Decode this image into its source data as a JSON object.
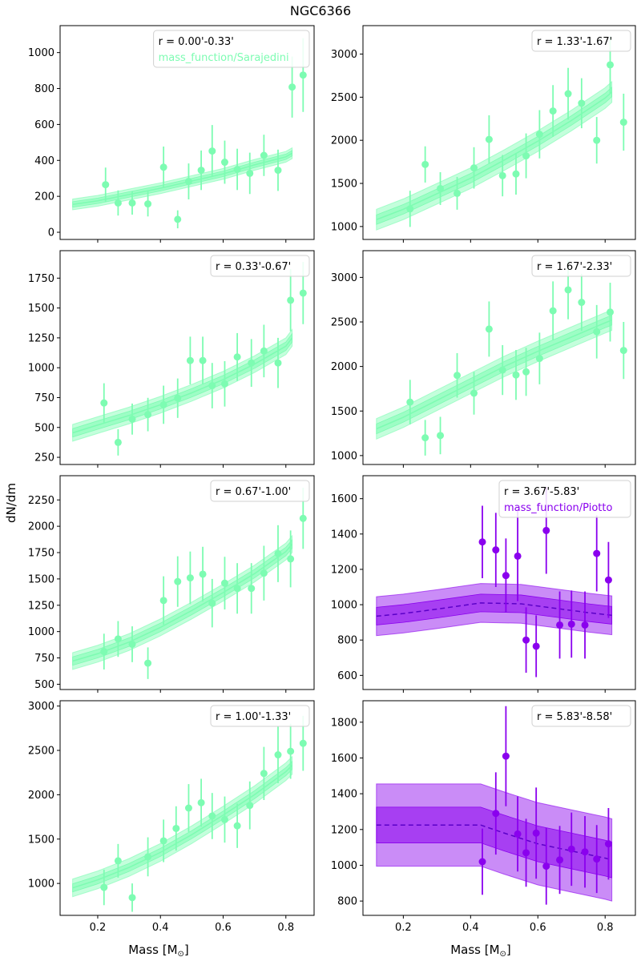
{
  "figure": {
    "title": "NGC6366",
    "ylabel": "dN/dm",
    "xlabel": "Mass [M",
    "xlabel_sub": "⊙",
    "xlabel_close": "]"
  },
  "colors": {
    "green": "#7dfcb2",
    "purple": "#8a00ee"
  },
  "chart_data": [
    {
      "type": "scatter",
      "radial_bin": "r = 0.00'-0.33'",
      "legend_series": "mass_function/Sarajedini",
      "xlim": [
        0.08,
        0.89
      ],
      "ylim": [
        -40,
        1150
      ],
      "yticks": [
        0,
        200,
        400,
        600,
        800,
        1000
      ],
      "xticks": [
        0.2,
        0.4,
        0.6,
        0.8
      ],
      "model": {
        "x": [
          0.12,
          0.2,
          0.3,
          0.4,
          0.5,
          0.6,
          0.7,
          0.8,
          0.82
        ],
        "y": [
          155,
          175,
          210,
          245,
          285,
          325,
          375,
          420,
          440
        ],
        "inner": 15,
        "outer": 30,
        "dashed": false
      },
      "points": [
        {
          "x": 0.225,
          "y": 265,
          "err": 95
        },
        {
          "x": 0.265,
          "y": 163,
          "err": 70
        },
        {
          "x": 0.31,
          "y": 163,
          "err": 65
        },
        {
          "x": 0.36,
          "y": 158,
          "err": 70
        },
        {
          "x": 0.41,
          "y": 362,
          "err": 115
        },
        {
          "x": 0.455,
          "y": 72,
          "err": 50
        },
        {
          "x": 0.49,
          "y": 283,
          "err": 100
        },
        {
          "x": 0.53,
          "y": 345,
          "err": 110
        },
        {
          "x": 0.565,
          "y": 452,
          "err": 145
        },
        {
          "x": 0.605,
          "y": 390,
          "err": 120
        },
        {
          "x": 0.645,
          "y": 350,
          "err": 115
        },
        {
          "x": 0.685,
          "y": 328,
          "err": 115
        },
        {
          "x": 0.73,
          "y": 428,
          "err": 115
        },
        {
          "x": 0.775,
          "y": 345,
          "err": 115
        },
        {
          "x": 0.82,
          "y": 808,
          "err": 170
        },
        {
          "x": 0.855,
          "y": 875,
          "err": 205
        }
      ]
    },
    {
      "type": "scatter",
      "radial_bin": "r = 1.33'-1.67'",
      "xlim": [
        0.08,
        0.89
      ],
      "ylim": [
        850,
        3330
      ],
      "yticks": [
        1000,
        1500,
        2000,
        2500,
        3000
      ],
      "xticks": [
        0.2,
        0.4,
        0.6,
        0.8
      ],
      "model": {
        "x": [
          0.12,
          0.2,
          0.3,
          0.4,
          0.5,
          0.6,
          0.7,
          0.8,
          0.82
        ],
        "y": [
          1080,
          1200,
          1380,
          1560,
          1770,
          1990,
          2230,
          2490,
          2560
        ],
        "inner": 55,
        "outer": 120,
        "dashed": false
      },
      "points": [
        {
          "x": 0.22,
          "y": 1205,
          "err": 210
        },
        {
          "x": 0.265,
          "y": 1720,
          "err": 210
        },
        {
          "x": 0.31,
          "y": 1440,
          "err": 190
        },
        {
          "x": 0.36,
          "y": 1385,
          "err": 190
        },
        {
          "x": 0.41,
          "y": 1680,
          "err": 240
        },
        {
          "x": 0.455,
          "y": 2010,
          "err": 280
        },
        {
          "x": 0.495,
          "y": 1590,
          "err": 240
        },
        {
          "x": 0.535,
          "y": 1610,
          "err": 240
        },
        {
          "x": 0.565,
          "y": 1820,
          "err": 260
        },
        {
          "x": 0.605,
          "y": 2070,
          "err": 280
        },
        {
          "x": 0.645,
          "y": 2340,
          "err": 300
        },
        {
          "x": 0.69,
          "y": 2540,
          "err": 300
        },
        {
          "x": 0.73,
          "y": 2430,
          "err": 290
        },
        {
          "x": 0.775,
          "y": 2000,
          "err": 270
        },
        {
          "x": 0.815,
          "y": 2875,
          "err": 330
        },
        {
          "x": 0.855,
          "y": 2210,
          "err": 330
        }
      ]
    },
    {
      "type": "scatter",
      "radial_bin": "r = 0.33'-0.67'",
      "xlim": [
        0.08,
        0.89
      ],
      "ylim": [
        190,
        1980
      ],
      "yticks": [
        250,
        500,
        750,
        1000,
        1250,
        1500,
        1750
      ],
      "xticks": [
        0.2,
        0.4,
        0.6,
        0.8
      ],
      "model": {
        "x": [
          0.12,
          0.2,
          0.3,
          0.4,
          0.5,
          0.6,
          0.7,
          0.8,
          0.82
        ],
        "y": [
          455,
          520,
          600,
          690,
          790,
          900,
          1030,
          1180,
          1250
        ],
        "inner": 35,
        "outer": 70,
        "dashed": false
      },
      "points": [
        {
          "x": 0.22,
          "y": 705,
          "err": 165
        },
        {
          "x": 0.265,
          "y": 375,
          "err": 110
        },
        {
          "x": 0.31,
          "y": 570,
          "err": 130
        },
        {
          "x": 0.36,
          "y": 608,
          "err": 140
        },
        {
          "x": 0.41,
          "y": 690,
          "err": 160
        },
        {
          "x": 0.455,
          "y": 745,
          "err": 165
        },
        {
          "x": 0.495,
          "y": 1060,
          "err": 200
        },
        {
          "x": 0.535,
          "y": 1060,
          "err": 200
        },
        {
          "x": 0.565,
          "y": 850,
          "err": 190
        },
        {
          "x": 0.605,
          "y": 865,
          "err": 190
        },
        {
          "x": 0.645,
          "y": 1090,
          "err": 200
        },
        {
          "x": 0.69,
          "y": 1040,
          "err": 200
        },
        {
          "x": 0.73,
          "y": 1140,
          "err": 220
        },
        {
          "x": 0.775,
          "y": 1040,
          "err": 210
        },
        {
          "x": 0.815,
          "y": 1565,
          "err": 260
        },
        {
          "x": 0.855,
          "y": 1625,
          "err": 260
        }
      ]
    },
    {
      "type": "scatter",
      "radial_bin": "r = 1.67'-2.33'",
      "xlim": [
        0.08,
        0.89
      ],
      "ylim": [
        900,
        3300
      ],
      "yticks": [
        1000,
        1500,
        2000,
        2500,
        3000
      ],
      "xticks": [
        0.2,
        0.4,
        0.6,
        0.8
      ],
      "model": {
        "x": [
          0.12,
          0.2,
          0.3,
          0.4,
          0.5,
          0.6,
          0.7,
          0.8,
          0.82
        ],
        "y": [
          1300,
          1430,
          1620,
          1810,
          2000,
          2170,
          2330,
          2490,
          2520
        ],
        "inner": 55,
        "outer": 115,
        "dashed": false
      },
      "points": [
        {
          "x": 0.22,
          "y": 1600,
          "err": 250
        },
        {
          "x": 0.265,
          "y": 1200,
          "err": 200
        },
        {
          "x": 0.31,
          "y": 1225,
          "err": 210
        },
        {
          "x": 0.36,
          "y": 1900,
          "err": 250
        },
        {
          "x": 0.41,
          "y": 1700,
          "err": 240
        },
        {
          "x": 0.455,
          "y": 2420,
          "err": 310
        },
        {
          "x": 0.495,
          "y": 1960,
          "err": 280
        },
        {
          "x": 0.535,
          "y": 1905,
          "err": 280
        },
        {
          "x": 0.565,
          "y": 1940,
          "err": 270
        },
        {
          "x": 0.605,
          "y": 2090,
          "err": 290
        },
        {
          "x": 0.645,
          "y": 2625,
          "err": 330
        },
        {
          "x": 0.69,
          "y": 2860,
          "err": 330
        },
        {
          "x": 0.73,
          "y": 2720,
          "err": 320
        },
        {
          "x": 0.775,
          "y": 2390,
          "err": 300
        },
        {
          "x": 0.815,
          "y": 2610,
          "err": 330
        },
        {
          "x": 0.855,
          "y": 2180,
          "err": 320
        }
      ]
    },
    {
      "type": "scatter",
      "radial_bin": "r = 0.67'-1.00'",
      "xlim": [
        0.08,
        0.89
      ],
      "ylim": [
        450,
        2480
      ],
      "yticks": [
        500,
        750,
        1000,
        1250,
        1500,
        1750,
        2000,
        2250
      ],
      "xticks": [
        0.2,
        0.4,
        0.6,
        0.8
      ],
      "model": {
        "x": [
          0.12,
          0.2,
          0.3,
          0.4,
          0.5,
          0.6,
          0.7,
          0.8,
          0.82
        ],
        "y": [
          720,
          790,
          900,
          1040,
          1200,
          1370,
          1550,
          1760,
          1830
        ],
        "inner": 40,
        "outer": 80,
        "dashed": false
      },
      "points": [
        {
          "x": 0.22,
          "y": 810,
          "err": 170
        },
        {
          "x": 0.265,
          "y": 930,
          "err": 170
        },
        {
          "x": 0.31,
          "y": 880,
          "err": 170
        },
        {
          "x": 0.36,
          "y": 700,
          "err": 150
        },
        {
          "x": 0.41,
          "y": 1295,
          "err": 230
        },
        {
          "x": 0.455,
          "y": 1475,
          "err": 240
        },
        {
          "x": 0.495,
          "y": 1510,
          "err": 250
        },
        {
          "x": 0.535,
          "y": 1545,
          "err": 260
        },
        {
          "x": 0.565,
          "y": 1270,
          "err": 230
        },
        {
          "x": 0.605,
          "y": 1460,
          "err": 250
        },
        {
          "x": 0.645,
          "y": 1410,
          "err": 240
        },
        {
          "x": 0.69,
          "y": 1410,
          "err": 240
        },
        {
          "x": 0.73,
          "y": 1555,
          "err": 260
        },
        {
          "x": 0.775,
          "y": 1740,
          "err": 270
        },
        {
          "x": 0.815,
          "y": 1690,
          "err": 270
        },
        {
          "x": 0.855,
          "y": 2075,
          "err": 290
        }
      ]
    },
    {
      "type": "scatter",
      "radial_bin": "r = 3.67'-5.83'",
      "legend_series": "mass_function/Piotto",
      "xlim": [
        0.08,
        0.89
      ],
      "ylim": [
        520,
        1730
      ],
      "yticks": [
        600,
        800,
        1000,
        1200,
        1400,
        1600
      ],
      "xticks": [
        0.2,
        0.4,
        0.6,
        0.8
      ],
      "model": {
        "x": [
          0.12,
          0.2,
          0.3,
          0.43,
          0.55,
          0.65,
          0.75,
          0.82
        ],
        "y": [
          935,
          950,
          975,
          1010,
          1005,
          980,
          955,
          940
        ],
        "inner": 50,
        "outer": 110,
        "dashed": true
      },
      "points": [
        {
          "x": 0.435,
          "y": 1355,
          "err": 205
        },
        {
          "x": 0.475,
          "y": 1310,
          "err": 210
        },
        {
          "x": 0.505,
          "y": 1165,
          "err": 210
        },
        {
          "x": 0.54,
          "y": 1275,
          "err": 255
        },
        {
          "x": 0.565,
          "y": 800,
          "err": 185
        },
        {
          "x": 0.595,
          "y": 765,
          "err": 175
        },
        {
          "x": 0.625,
          "y": 1420,
          "err": 245
        },
        {
          "x": 0.665,
          "y": 885,
          "err": 190
        },
        {
          "x": 0.7,
          "y": 890,
          "err": 190
        },
        {
          "x": 0.74,
          "y": 885,
          "err": 190
        },
        {
          "x": 0.775,
          "y": 1290,
          "err": 215
        },
        {
          "x": 0.81,
          "y": 1140,
          "err": 215
        }
      ]
    },
    {
      "type": "scatter",
      "radial_bin": "r = 1.00'-1.33'",
      "xlim": [
        0.08,
        0.89
      ],
      "ylim": [
        640,
        3060
      ],
      "yticks": [
        1000,
        1500,
        2000,
        2500,
        3000
      ],
      "xticks": [
        0.2,
        0.4,
        0.6,
        0.8
      ],
      "model": {
        "x": [
          0.12,
          0.2,
          0.3,
          0.4,
          0.5,
          0.6,
          0.7,
          0.8,
          0.82
        ],
        "y": [
          950,
          1040,
          1180,
          1350,
          1550,
          1770,
          2000,
          2260,
          2330
        ],
        "inner": 45,
        "outer": 100,
        "dashed": false
      },
      "points": [
        {
          "x": 0.22,
          "y": 955,
          "err": 200
        },
        {
          "x": 0.265,
          "y": 1255,
          "err": 190
        },
        {
          "x": 0.31,
          "y": 840,
          "err": 160
        },
        {
          "x": 0.36,
          "y": 1300,
          "err": 220
        },
        {
          "x": 0.41,
          "y": 1480,
          "err": 240
        },
        {
          "x": 0.45,
          "y": 1620,
          "err": 250
        },
        {
          "x": 0.49,
          "y": 1850,
          "err": 270
        },
        {
          "x": 0.53,
          "y": 1910,
          "err": 270
        },
        {
          "x": 0.565,
          "y": 1760,
          "err": 260
        },
        {
          "x": 0.605,
          "y": 1720,
          "err": 260
        },
        {
          "x": 0.645,
          "y": 1650,
          "err": 250
        },
        {
          "x": 0.685,
          "y": 1880,
          "err": 270
        },
        {
          "x": 0.73,
          "y": 2240,
          "err": 300
        },
        {
          "x": 0.775,
          "y": 2450,
          "err": 320
        },
        {
          "x": 0.815,
          "y": 2490,
          "err": 310
        },
        {
          "x": 0.855,
          "y": 2580,
          "err": 310
        }
      ]
    },
    {
      "type": "scatter",
      "radial_bin": "r = 5.83'-8.58'",
      "xlim": [
        0.08,
        0.89
      ],
      "ylim": [
        720,
        1920
      ],
      "yticks": [
        800,
        1000,
        1200,
        1400,
        1600,
        1800
      ],
      "xticks": [
        0.2,
        0.4,
        0.6,
        0.8
      ],
      "model": {
        "x": [
          0.12,
          0.2,
          0.3,
          0.43,
          0.5,
          0.6,
          0.7,
          0.8,
          0.82
        ],
        "y": [
          1225,
          1225,
          1225,
          1225,
          1180,
          1120,
          1080,
          1040,
          1030
        ],
        "inner": 100,
        "outer": 230,
        "dashed": true
      },
      "points": [
        {
          "x": 0.435,
          "y": 1020,
          "err": 185
        },
        {
          "x": 0.475,
          "y": 1290,
          "err": 230
        },
        {
          "x": 0.505,
          "y": 1610,
          "err": 280
        },
        {
          "x": 0.54,
          "y": 1175,
          "err": 210
        },
        {
          "x": 0.565,
          "y": 1070,
          "err": 190
        },
        {
          "x": 0.595,
          "y": 1180,
          "err": 255
        },
        {
          "x": 0.625,
          "y": 995,
          "err": 215
        },
        {
          "x": 0.665,
          "y": 1030,
          "err": 190
        },
        {
          "x": 0.7,
          "y": 1090,
          "err": 205
        },
        {
          "x": 0.74,
          "y": 1075,
          "err": 200
        },
        {
          "x": 0.775,
          "y": 1035,
          "err": 190
        },
        {
          "x": 0.81,
          "y": 1120,
          "err": 200
        }
      ]
    }
  ]
}
